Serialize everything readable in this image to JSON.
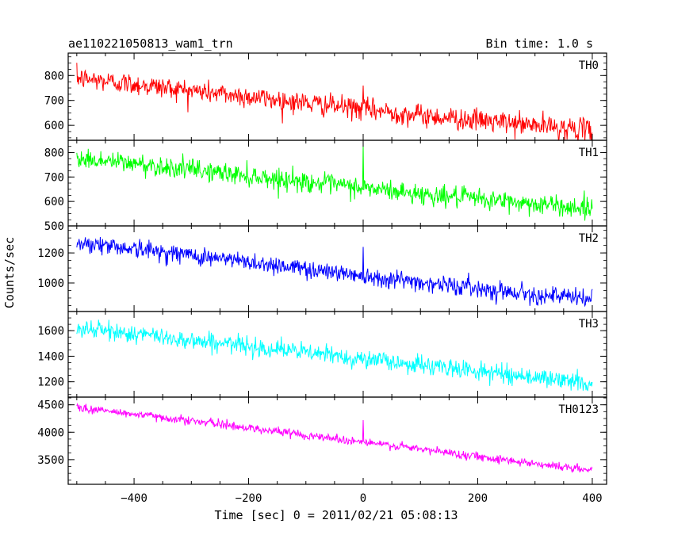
{
  "header": {
    "title": "ae110221050813_wam1_trn",
    "bin_time": "Bin time: 1.0 s"
  },
  "chart_data": {
    "type": "line",
    "xlabel": "Time [sec] 0 = 2011/02/21 05:08:13",
    "ylabel": "Counts/sec",
    "xlim": [
      -515,
      425
    ],
    "x_ticks": [
      -400,
      -200,
      0,
      200,
      400
    ],
    "x_tick_labels": [
      "−400",
      "−200",
      "0",
      "200",
      "400"
    ],
    "bin_time_s": 1.0,
    "x_range_data": [
      -500,
      400
    ],
    "panels": [
      {
        "name": "TH0",
        "color": "#ff0000",
        "ylim": [
          540,
          890
        ],
        "y_ticks": [
          600,
          700,
          800
        ],
        "y_tick_labels": [
          "600",
          "700",
          "800"
        ],
        "trend": {
          "x": [
            -500,
            -400,
            -300,
            -200,
            -100,
            0,
            100,
            200,
            300,
            400
          ],
          "y": [
            790,
            765,
            740,
            715,
            690,
            665,
            640,
            620,
            600,
            580
          ]
        },
        "noise_amplitude": 40,
        "spike": {
          "x": 0,
          "y": 760
        }
      },
      {
        "name": "TH1",
        "color": "#00ff00",
        "ylim": [
          500,
          850
        ],
        "y_ticks": [
          500,
          600,
          700,
          800
        ],
        "y_tick_labels": [
          "500",
          "600",
          "700",
          "800"
        ],
        "trend": {
          "x": [
            -500,
            -400,
            -300,
            -200,
            -100,
            0,
            100,
            200,
            300,
            400
          ],
          "y": [
            775,
            755,
            730,
            705,
            680,
            655,
            630,
            610,
            590,
            570
          ]
        },
        "noise_amplitude": 38,
        "spike": {
          "x": 0,
          "y": 830
        }
      },
      {
        "name": "TH2",
        "color": "#0000ff",
        "ylim": [
          810,
          1380
        ],
        "y_ticks": [
          1000,
          1200
        ],
        "y_tick_labels": [
          "1000",
          "1200"
        ],
        "trend": {
          "x": [
            -500,
            -400,
            -300,
            -200,
            -100,
            0,
            100,
            200,
            300,
            400
          ],
          "y": [
            1270,
            1230,
            1185,
            1140,
            1095,
            1050,
            1005,
            965,
            925,
            890
          ]
        },
        "noise_amplitude": 55,
        "spike": {
          "x": 0,
          "y": 1240
        }
      },
      {
        "name": "TH3",
        "color": "#00ffff",
        "ylim": [
          1080,
          1750
        ],
        "y_ticks": [
          1200,
          1400,
          1600
        ],
        "y_tick_labels": [
          "1200",
          "1400",
          "1600"
        ],
        "trend": {
          "x": [
            -500,
            -400,
            -300,
            -200,
            -100,
            0,
            100,
            200,
            300,
            400
          ],
          "y": [
            1620,
            1575,
            1525,
            1480,
            1430,
            1380,
            1330,
            1285,
            1235,
            1185
          ]
        },
        "noise_amplitude": 65,
        "spike": null
      },
      {
        "name": "TH0123",
        "color": "#ff00ff",
        "ylim": [
          3050,
          4640
        ],
        "y_ticks": [
          3500,
          4000,
          4500
        ],
        "y_tick_labels": [
          "3500",
          "4000",
          "4500"
        ],
        "trend": {
          "x": [
            -500,
            -400,
            -300,
            -200,
            -100,
            0,
            100,
            200,
            300,
            400
          ],
          "y": [
            4450,
            4330,
            4210,
            4080,
            3950,
            3820,
            3690,
            3560,
            3430,
            3300
          ]
        },
        "noise_amplitude": 70,
        "spike": {
          "x": 0,
          "y": 4220
        }
      }
    ]
  }
}
